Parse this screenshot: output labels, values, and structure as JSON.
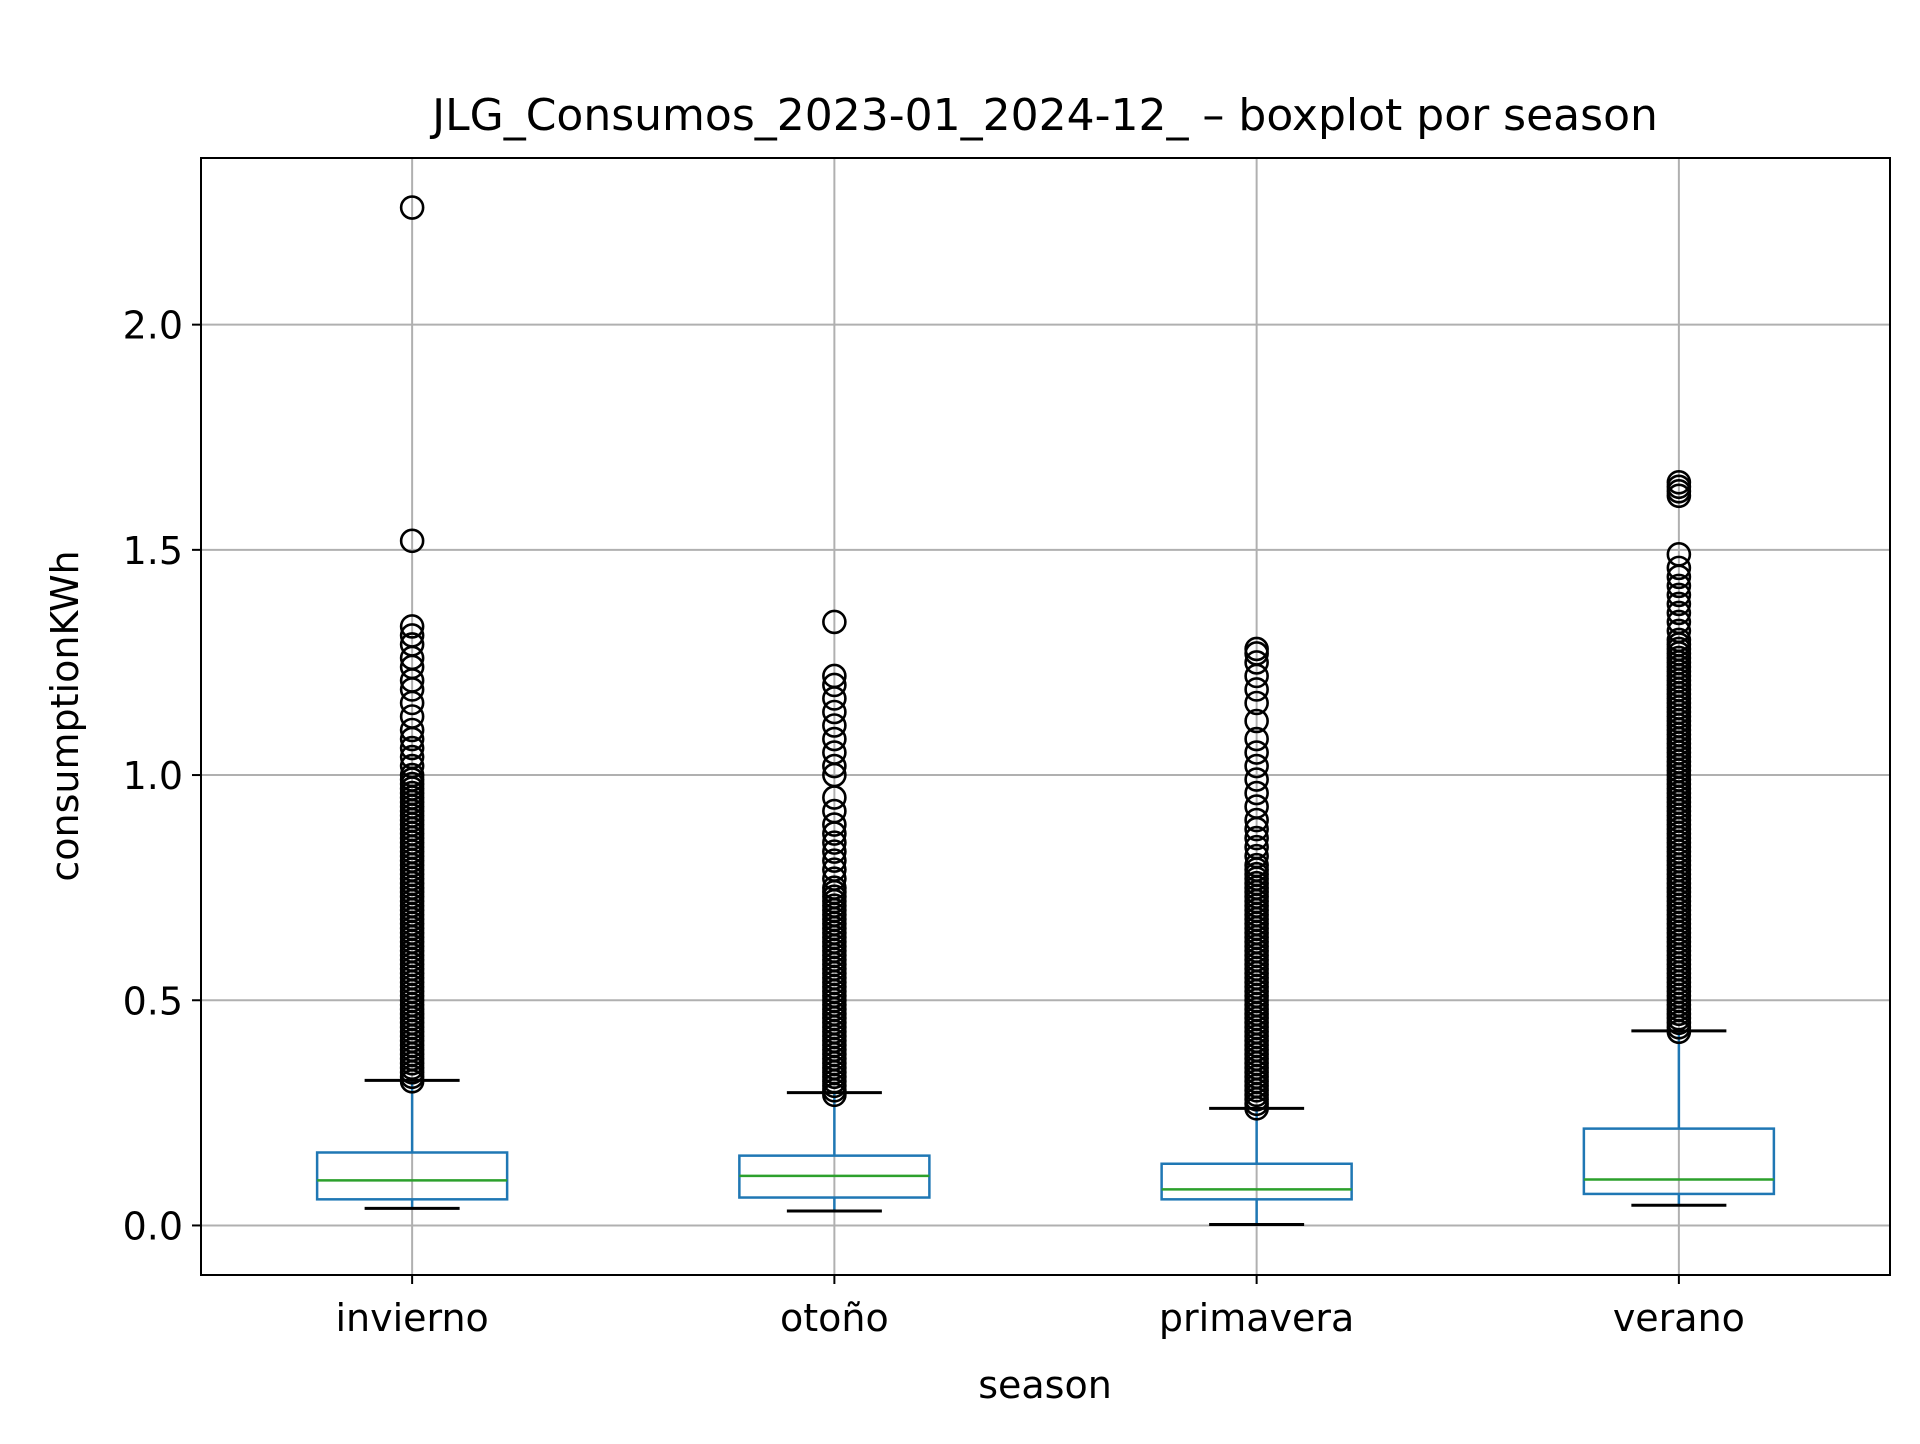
{
  "chart_data": {
    "type": "boxplot",
    "title": "JLG_Consumos_2023-01_2024-12_ – boxplot por season",
    "xlabel": "season",
    "ylabel": "consumptionKWh",
    "ylim": [
      -0.11,
      2.37
    ],
    "yticks": [
      0.0,
      0.5,
      1.0,
      1.5,
      2.0
    ],
    "ytick_labels": [
      "0.0",
      "0.5",
      "1.0",
      "1.5",
      "2.0"
    ],
    "grid": true,
    "legend": "none",
    "categories": [
      "invierno",
      "otoño",
      "primavera",
      "verano"
    ],
    "boxes": [
      {
        "category": "invierno",
        "whisker_low": 0.038,
        "q1": 0.058,
        "median": 0.1,
        "q3": 0.162,
        "whisker_high": 0.322,
        "outliers": [
          0.32,
          0.33,
          0.34,
          0.35,
          0.36,
          0.37,
          0.38,
          0.39,
          0.4,
          0.41,
          0.42,
          0.43,
          0.44,
          0.45,
          0.46,
          0.47,
          0.48,
          0.49,
          0.5,
          0.51,
          0.52,
          0.53,
          0.54,
          0.55,
          0.56,
          0.57,
          0.58,
          0.59,
          0.6,
          0.61,
          0.62,
          0.63,
          0.64,
          0.65,
          0.66,
          0.67,
          0.68,
          0.69,
          0.7,
          0.71,
          0.72,
          0.73,
          0.74,
          0.75,
          0.76,
          0.77,
          0.78,
          0.79,
          0.8,
          0.81,
          0.82,
          0.83,
          0.84,
          0.85,
          0.86,
          0.87,
          0.88,
          0.89,
          0.9,
          0.91,
          0.92,
          0.93,
          0.94,
          0.95,
          0.96,
          0.97,
          0.98,
          0.99,
          1.0,
          1.02,
          1.04,
          1.06,
          1.08,
          1.1,
          1.13,
          1.16,
          1.19,
          1.21,
          1.24,
          1.26,
          1.29,
          1.31,
          1.33,
          1.52,
          2.26
        ]
      },
      {
        "category": "otoño",
        "whisker_low": 0.032,
        "q1": 0.062,
        "median": 0.11,
        "q3": 0.155,
        "whisker_high": 0.295,
        "outliers": [
          0.29,
          0.3,
          0.31,
          0.32,
          0.33,
          0.34,
          0.35,
          0.36,
          0.37,
          0.38,
          0.39,
          0.4,
          0.41,
          0.42,
          0.43,
          0.44,
          0.45,
          0.46,
          0.47,
          0.48,
          0.49,
          0.5,
          0.51,
          0.52,
          0.53,
          0.54,
          0.55,
          0.56,
          0.57,
          0.58,
          0.59,
          0.6,
          0.61,
          0.62,
          0.63,
          0.64,
          0.65,
          0.66,
          0.67,
          0.68,
          0.69,
          0.7,
          0.71,
          0.72,
          0.73,
          0.74,
          0.75,
          0.77,
          0.79,
          0.81,
          0.83,
          0.85,
          0.87,
          0.89,
          0.92,
          0.95,
          1.0,
          1.02,
          1.05,
          1.08,
          1.11,
          1.14,
          1.17,
          1.2,
          1.22,
          1.34
        ]
      },
      {
        "category": "primavera",
        "whisker_low": 0.002,
        "q1": 0.058,
        "median": 0.08,
        "q3": 0.137,
        "whisker_high": 0.26,
        "outliers": [
          0.26,
          0.27,
          0.28,
          0.29,
          0.3,
          0.31,
          0.32,
          0.33,
          0.34,
          0.35,
          0.36,
          0.37,
          0.38,
          0.39,
          0.4,
          0.41,
          0.42,
          0.43,
          0.44,
          0.45,
          0.46,
          0.47,
          0.48,
          0.49,
          0.5,
          0.51,
          0.52,
          0.53,
          0.54,
          0.55,
          0.56,
          0.57,
          0.58,
          0.59,
          0.6,
          0.61,
          0.62,
          0.63,
          0.64,
          0.65,
          0.66,
          0.67,
          0.68,
          0.69,
          0.7,
          0.71,
          0.72,
          0.73,
          0.74,
          0.75,
          0.76,
          0.77,
          0.78,
          0.79,
          0.8,
          0.82,
          0.84,
          0.86,
          0.88,
          0.9,
          0.93,
          0.96,
          0.99,
          1.02,
          1.05,
          1.08,
          1.12,
          1.16,
          1.19,
          1.22,
          1.25,
          1.27,
          1.28
        ]
      },
      {
        "category": "verano",
        "whisker_low": 0.045,
        "q1": 0.07,
        "median": 0.102,
        "q3": 0.215,
        "whisker_high": 0.432,
        "outliers": [
          0.43,
          0.44,
          0.45,
          0.46,
          0.47,
          0.48,
          0.49,
          0.5,
          0.51,
          0.52,
          0.53,
          0.54,
          0.55,
          0.56,
          0.57,
          0.58,
          0.59,
          0.6,
          0.61,
          0.62,
          0.63,
          0.64,
          0.65,
          0.66,
          0.67,
          0.68,
          0.69,
          0.7,
          0.71,
          0.72,
          0.73,
          0.74,
          0.75,
          0.76,
          0.77,
          0.78,
          0.79,
          0.8,
          0.81,
          0.82,
          0.83,
          0.84,
          0.85,
          0.86,
          0.87,
          0.88,
          0.89,
          0.9,
          0.91,
          0.92,
          0.93,
          0.94,
          0.95,
          0.96,
          0.97,
          0.98,
          0.99,
          1.0,
          1.01,
          1.02,
          1.03,
          1.04,
          1.05,
          1.06,
          1.07,
          1.08,
          1.09,
          1.1,
          1.11,
          1.12,
          1.13,
          1.14,
          1.15,
          1.16,
          1.17,
          1.18,
          1.19,
          1.2,
          1.21,
          1.22,
          1.23,
          1.24,
          1.25,
          1.26,
          1.27,
          1.28,
          1.29,
          1.3,
          1.32,
          1.34,
          1.36,
          1.38,
          1.4,
          1.42,
          1.44,
          1.46,
          1.49,
          1.62,
          1.63,
          1.64,
          1.65
        ]
      }
    ],
    "colors": {
      "box": "#1f77b4",
      "median": "#2ca02c",
      "whisker": "#1f77b4",
      "cap": "#000000",
      "outlier": "#000000",
      "grid": "#b0b0b0",
      "axes": "#000000"
    }
  }
}
